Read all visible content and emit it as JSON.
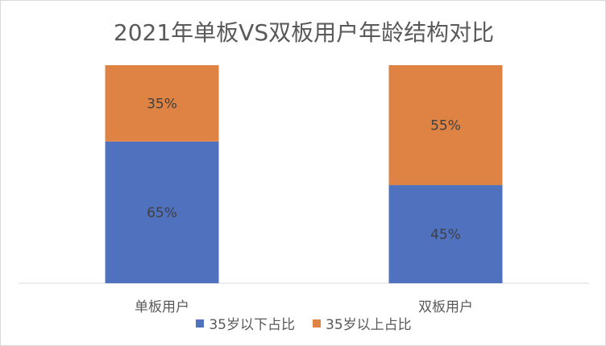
{
  "chart_data": {
    "type": "bar",
    "stacked": true,
    "percent": true,
    "title": "2021年单板VS双板用户年龄结构对比",
    "categories": [
      "单板用户",
      "双板用户"
    ],
    "series": [
      {
        "name": "35岁以下占比",
        "values": [
          65,
          45
        ],
        "labels": [
          "65%",
          "45%"
        ],
        "color": "#4f71be"
      },
      {
        "name": "35岁以上占比",
        "values": [
          35,
          55
        ],
        "labels": [
          "35%",
          "55%"
        ],
        "color": "#de8344"
      }
    ],
    "ylim": [
      0,
      100
    ],
    "grid": false,
    "legend": "bottom"
  }
}
